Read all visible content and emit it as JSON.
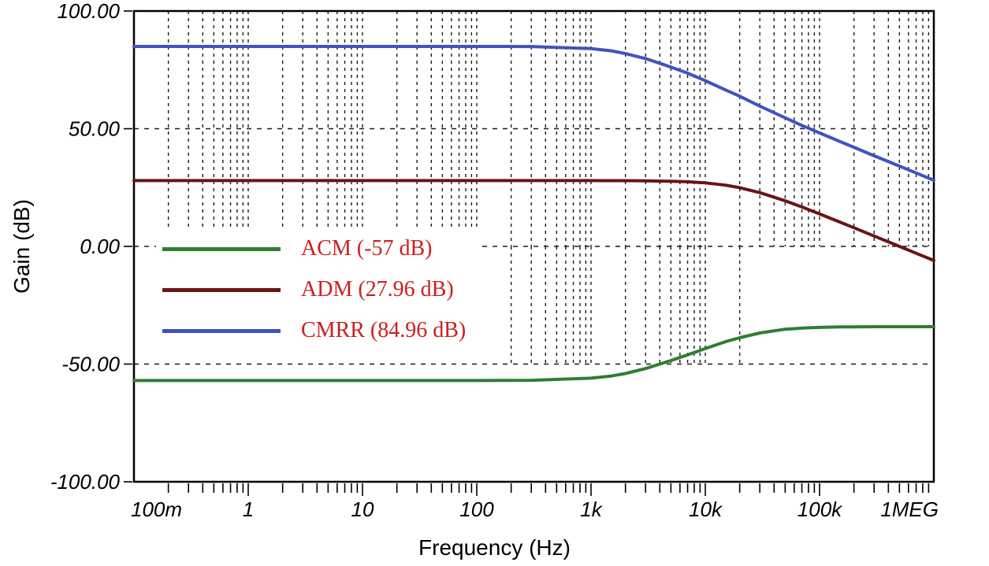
{
  "chart_data": {
    "type": "line",
    "title": "",
    "xlabel": "Frequency (Hz)",
    "ylabel": "Gain (dB)",
    "x_scale": "log",
    "xlim": [
      0.1,
      1000000
    ],
    "ylim": [
      -100,
      100
    ],
    "grid": "dashed",
    "legend_position": "inside middle-left",
    "legend_text_color": "#cc1f1f",
    "x_ticks": [
      {
        "value": 0.1,
        "label": "100m"
      },
      {
        "value": 1,
        "label": "1"
      },
      {
        "value": 10,
        "label": "10"
      },
      {
        "value": 100,
        "label": "100"
      },
      {
        "value": 1000,
        "label": "1k"
      },
      {
        "value": 10000,
        "label": "10k"
      },
      {
        "value": 100000,
        "label": "100k"
      },
      {
        "value": 1000000,
        "label": "1MEG"
      }
    ],
    "y_ticks": [
      {
        "value": 100,
        "label": "100.00"
      },
      {
        "value": 50,
        "label": "50.00"
      },
      {
        "value": 0,
        "label": "0.00"
      },
      {
        "value": -50,
        "label": "-50.00"
      },
      {
        "value": -100,
        "label": "-100.00"
      }
    ],
    "x": [
      0.1,
      1,
      10,
      100,
      300,
      1000,
      1500,
      2000,
      3000,
      5000,
      7000,
      10000,
      15000,
      20000,
      30000,
      50000,
      70000,
      100000,
      150000,
      200000,
      300000,
      500000,
      700000,
      1000000
    ],
    "series": [
      {
        "name": "ACM (-57 dB)",
        "color": "#2f7e32",
        "values": [
          -57,
          -57,
          -57,
          -57,
          -56.9,
          -56.0,
          -55.1,
          -54.0,
          -51.9,
          -48.5,
          -46.1,
          -43.4,
          -40.5,
          -38.8,
          -36.8,
          -35.2,
          -34.7,
          -34.4,
          -34.2,
          -34.2,
          -34.1,
          -34.1,
          -34.1,
          -34.1
        ]
      },
      {
        "name": "ADM (27.96 dB)",
        "color": "#6b1414",
        "values": [
          27.96,
          27.96,
          27.96,
          27.96,
          27.95,
          27.95,
          27.94,
          27.93,
          27.86,
          27.7,
          27.46,
          26.99,
          26.02,
          24.95,
          22.84,
          19.36,
          16.74,
          13.81,
          10.38,
          7.92,
          4.42,
          0.0,
          -2.9,
          -6.0
        ]
      },
      {
        "name": "CMRR (84.96 dB)",
        "color": "#4053c0",
        "values": [
          84.96,
          84.96,
          84.96,
          84.96,
          84.9,
          84.0,
          83.1,
          81.9,
          79.8,
          76.2,
          73.6,
          70.4,
          66.5,
          63.8,
          59.6,
          54.6,
          51.4,
          48.2,
          44.6,
          42.1,
          38.5,
          34.1,
          31.2,
          28.1
        ]
      }
    ]
  }
}
